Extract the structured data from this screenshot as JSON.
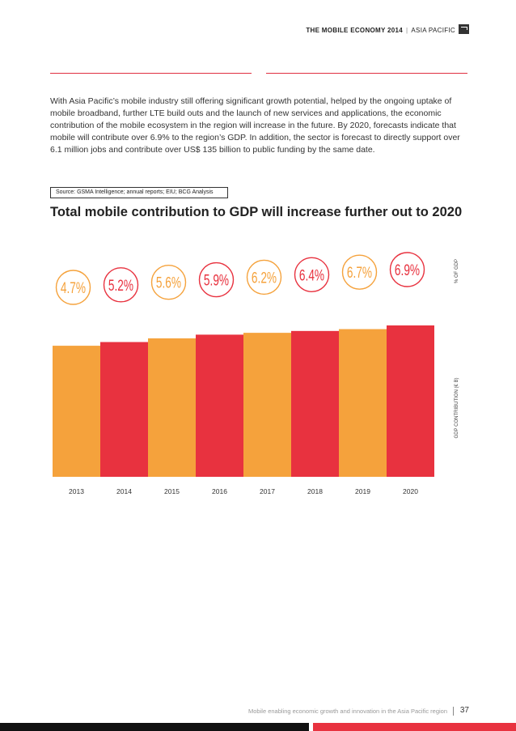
{
  "header": {
    "title": "THE MOBILE ECONOMY 2014",
    "separator": "|",
    "region": "ASIA PACIFIC"
  },
  "intro": "With Asia Pacific’s mobile industry still offering significant growth potential, helped by the ongoing uptake of mobile broadband, further LTE build outs and the launch of new services and applications, the economic contribution of the mobile ecosystem in the region will increase in the future. By 2020, forecasts indicate that mobile will contribute over 6.9% to the region’s GDP. In addition, the sector is forecast to directly support over 6.1 million jobs and contribute over US$ 135 billion to public funding by the same date.",
  "source": "Source: GSMA Intelligence; annual reports; EIU; BCG Analysis",
  "chart_title": "Total mobile contribution to GDP will increase further out to 2020",
  "chart_data": {
    "type": "bar",
    "title": "Total mobile contribution to GDP will increase further out to 2020",
    "categories": [
      "2013",
      "2014",
      "2015",
      "2016",
      "2017",
      "2018",
      "2019",
      "2020"
    ],
    "series": [
      {
        "name": "GDP contribution (€ B)",
        "values": [
          71,
          73,
          75,
          77,
          78,
          79,
          80,
          82
        ]
      },
      {
        "name": "% of GDP",
        "labels": [
          "4.7%",
          "5.2%",
          "5.6%",
          "5.9%",
          "6.2%",
          "6.4%",
          "6.7%",
          "6.9%"
        ],
        "values": [
          4.7,
          5.2,
          5.6,
          5.9,
          6.2,
          6.4,
          6.7,
          6.9
        ]
      }
    ],
    "ylabel_right_top": "% OF GDP",
    "ylabel_right_bottom": "GDP CONTRIBUTION (€ B)",
    "ylim": [
      0,
      82
    ],
    "colors": [
      "#f5a23c",
      "#e8323f"
    ],
    "note": "bar values estimated; no axis scale shown"
  },
  "footer": {
    "text": "Mobile enabling economic growth and innovation in the Asia Pacific region",
    "page_number": "37"
  }
}
